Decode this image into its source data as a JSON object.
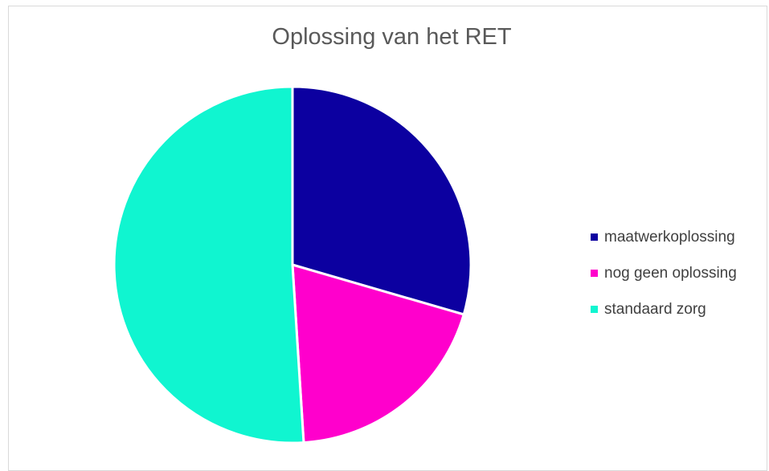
{
  "chart_data": {
    "type": "pie",
    "title": "Oplossing van het RET",
    "categories": [
      "maatwerkoplossing",
      "nog geen oplossing",
      "standaard zorg"
    ],
    "values": [
      29.5,
      19.5,
      51
    ],
    "colors": [
      "#0c00a0",
      "#ff00cc",
      "#10f5d0"
    ],
    "legend_position": "right"
  }
}
